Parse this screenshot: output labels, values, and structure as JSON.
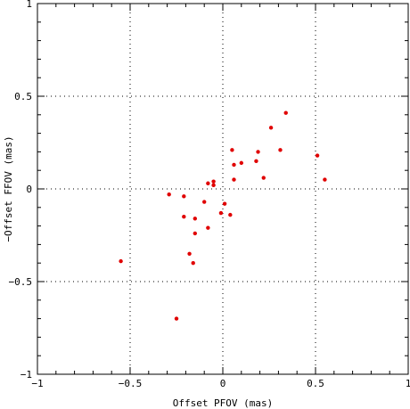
{
  "chart_data": {
    "type": "scatter",
    "title": "",
    "xlabel": "Offset PFOV (mas)",
    "ylabel": "−Offset FFOV (mas)",
    "xlim": [
      -1,
      1
    ],
    "ylim": [
      -1,
      1
    ],
    "x_ticks": [
      -1,
      -0.5,
      0,
      0.5,
      1
    ],
    "y_ticks": [
      -1,
      -0.5,
      0,
      0.5,
      1
    ],
    "x_tick_labels": [
      "−1",
      "−0.5",
      "0",
      "0.5",
      "1"
    ],
    "y_tick_labels": [
      "−1",
      "−0.5",
      "0",
      "0.5",
      "1"
    ],
    "grid": true,
    "marker_color": "#e00000",
    "series": [
      {
        "points": [
          [
            0.34,
            0.41
          ],
          [
            0.26,
            0.33
          ],
          [
            0.05,
            0.21
          ],
          [
            0.31,
            0.21
          ],
          [
            0.19,
            0.2
          ],
          [
            0.51,
            0.18
          ],
          [
            0.18,
            0.15
          ],
          [
            0.1,
            0.14
          ],
          [
            0.06,
            0.13
          ],
          [
            0.22,
            0.06
          ],
          [
            0.55,
            0.05
          ],
          [
            0.06,
            0.05
          ],
          [
            -0.05,
            0.04
          ],
          [
            -0.08,
            0.03
          ],
          [
            -0.05,
            0.02
          ],
          [
            -0.29,
            -0.03
          ],
          [
            -0.21,
            -0.04
          ],
          [
            -0.1,
            -0.07
          ],
          [
            0.01,
            -0.08
          ],
          [
            -0.01,
            -0.13
          ],
          [
            0.04,
            -0.14
          ],
          [
            -0.21,
            -0.15
          ],
          [
            -0.15,
            -0.16
          ],
          [
            -0.08,
            -0.21
          ],
          [
            -0.15,
            -0.24
          ],
          [
            -0.18,
            -0.35
          ],
          [
            -0.55,
            -0.39
          ],
          [
            -0.16,
            -0.4
          ],
          [
            -0.25,
            -0.7
          ]
        ]
      }
    ]
  }
}
